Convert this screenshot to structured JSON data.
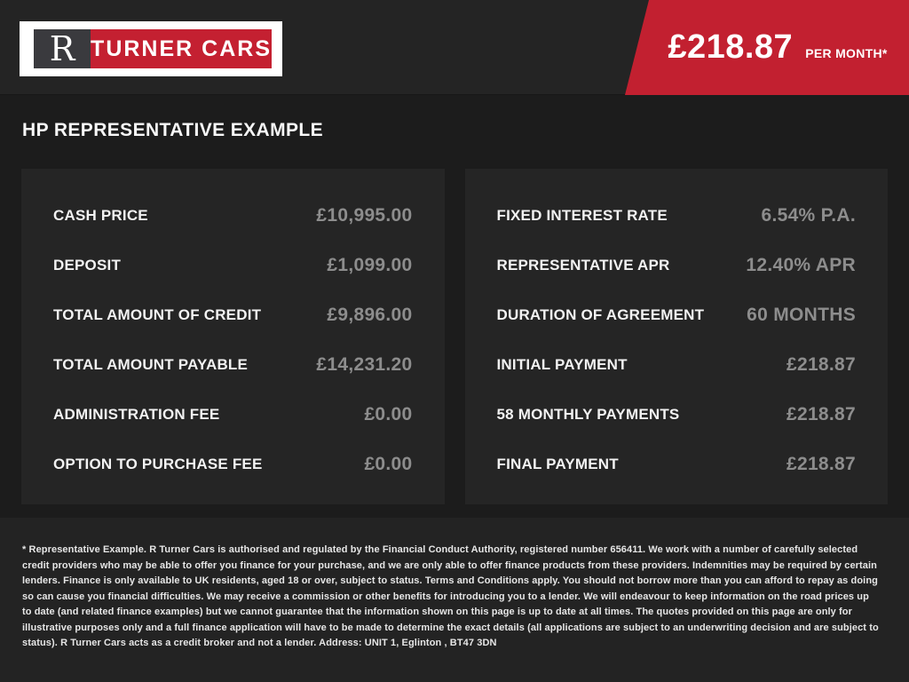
{
  "header": {
    "logo": {
      "letter": "R",
      "brand": "TURNER CARS"
    },
    "price_banner": {
      "amount": "£218.87",
      "period": "PER MONTH*"
    }
  },
  "page_title": "HP REPRESENTATIVE EXAMPLE",
  "finance": {
    "left_rows": [
      {
        "label": "CASH PRICE",
        "value": "£10,995.00"
      },
      {
        "label": "DEPOSIT",
        "value": "£1,099.00"
      },
      {
        "label": "TOTAL AMOUNT OF CREDIT",
        "value": "£9,896.00"
      },
      {
        "label": "TOTAL AMOUNT PAYABLE",
        "value": "£14,231.20"
      },
      {
        "label": "ADMINISTRATION FEE",
        "value": "£0.00"
      },
      {
        "label": "OPTION TO PURCHASE FEE",
        "value": "£0.00"
      }
    ],
    "right_rows": [
      {
        "label": "FIXED INTEREST RATE",
        "value": "6.54% P.A."
      },
      {
        "label": "REPRESENTATIVE APR",
        "value": "12.40% APR"
      },
      {
        "label": "DURATION OF AGREEMENT",
        "value": "60 MONTHS"
      },
      {
        "label": "INITIAL PAYMENT",
        "value": "£218.87"
      },
      {
        "label": "58 MONTHLY PAYMENTS",
        "value": "£218.87"
      },
      {
        "label": "FINAL PAYMENT",
        "value": "£218.87"
      }
    ]
  },
  "footer": {
    "disclaimer": "* Representative Example. R Turner Cars is authorised and regulated by the Financial Conduct Authority, registered number 656411. We work with a number of carefully selected credit providers who may be able to offer you finance for your purchase, and we are only able to offer finance products from these providers. Indemnities may be required by certain lenders. Finance is only available to UK residents, aged 18 or over, subject to status. Terms and Conditions apply. You should not borrow more than you can afford to repay as doing so can cause you financial difficulties. We may receive a commission or other benefits for introducing you to a lender. We will endeavour to keep information on the road prices up to date (and related finance examples) but we cannot guarantee that the information shown on this page is up to date at all times. The quotes provided on this page are only for illustrative purposes only and a full finance application will have to be made to determine the exact details (all applications are subject to an underwriting decision and are subject to status). R Turner Cars acts as a credit broker and not a lender. Address: UNIT 1, Eglinton , BT47 3DN"
  },
  "colors": {
    "accent_red": "#c22030",
    "header_bg": "#242424",
    "page_bg": "#1c1c1c",
    "panel_bg": "#252525",
    "footer_bg": "#232323",
    "label_white": "#f2f2f2",
    "value_gray": "#8d8d8d"
  }
}
